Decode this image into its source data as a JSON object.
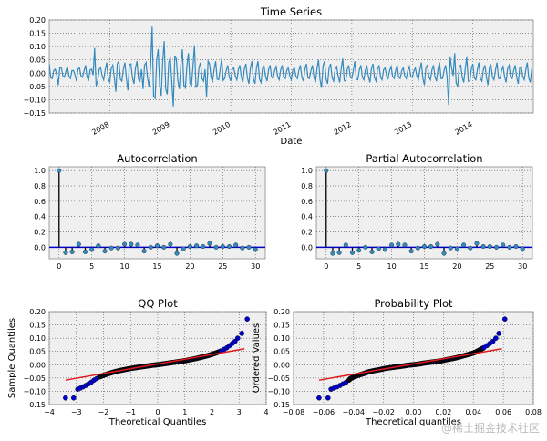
{
  "chart_data": [
    {
      "id": "ts",
      "type": "line",
      "title": "Time Series",
      "xlabel": "Date",
      "ylabel": "",
      "xlim": [
        2007,
        2015
      ],
      "ylim": [
        -0.15,
        0.2
      ],
      "grid": true,
      "color": "#348ABD",
      "xticks": [
        2008,
        2009,
        2010,
        2011,
        2012,
        2013,
        2014
      ],
      "xtick_labels": [
        "2008",
        "2009",
        "2010",
        "2011",
        "2012",
        "2013",
        "2014"
      ],
      "yticks": [
        0.2,
        0.15,
        0.1,
        0.05,
        0.0,
        -0.05,
        -0.1,
        -0.15
      ],
      "ytick_labels": [
        "0.20",
        "0.15",
        "0.10",
        "0.05",
        "0.00",
        "−0.05",
        "−0.10",
        "−0.15"
      ],
      "x_start": 2007.0,
      "x_step": 0.05,
      "values": [
        0.035,
        -0.02,
        0.015,
        -0.045,
        0.02,
        -0.015,
        0.025,
        -0.02,
        0.01,
        -0.03,
        0.02,
        -0.015,
        0.03,
        -0.025,
        0.015,
        0.095,
        -0.03,
        0.02,
        -0.025,
        0.04,
        -0.035,
        0.03,
        -0.07,
        0.045,
        -0.03,
        0.04,
        -0.065,
        0.035,
        -0.04,
        0.045,
        -0.03,
        -0.06,
        0.04,
        -0.05,
        0.175,
        -0.095,
        0.09,
        -0.085,
        0.12,
        -0.08,
        0.06,
        -0.125,
        0.055,
        -0.06,
        0.09,
        -0.055,
        0.075,
        -0.05,
        0.105,
        -0.045,
        0.04,
        -0.03,
        -0.09,
        0.035,
        -0.03,
        0.045,
        -0.025,
        0.055,
        -0.02,
        0.03,
        -0.03,
        0.02,
        -0.025,
        0.03,
        -0.035,
        0.035,
        -0.04,
        0.045,
        -0.04,
        0.045,
        -0.035,
        0.025,
        -0.03,
        0.03,
        -0.02,
        0.025,
        -0.025,
        0.03,
        -0.02,
        0.02,
        -0.025,
        0.02,
        -0.02,
        0.03,
        -0.03,
        0.035,
        -0.02,
        0.03,
        -0.035,
        0.05,
        -0.055,
        0.045,
        -0.04,
        0.035,
        -0.03,
        0.025,
        -0.035,
        0.055,
        -0.03,
        0.03,
        -0.02,
        0.045,
        -0.025,
        0.03,
        -0.025,
        0.025,
        -0.035,
        0.035,
        -0.03,
        0.03,
        -0.025,
        0.02,
        -0.02,
        0.025,
        -0.02,
        0.03,
        -0.02,
        0.02,
        -0.02,
        0.025,
        -0.015,
        0.02,
        -0.025,
        0.04,
        -0.045,
        0.03,
        -0.025,
        0.03,
        -0.03,
        0.04,
        -0.02,
        0.03,
        -0.12,
        0.02,
        0.075,
        -0.05,
        0.03,
        -0.035,
        0.06,
        -0.03,
        0.035,
        -0.025,
        0.04,
        -0.03,
        0.03,
        -0.045,
        0.03,
        -0.025,
        0.04,
        -0.02,
        0.025,
        -0.035,
        0.03,
        -0.02,
        0.03,
        -0.04,
        0.025,
        -0.025,
        0.04,
        -0.035
      ]
    },
    {
      "id": "acf",
      "type": "stem",
      "title": "Autocorrelation",
      "xlim": [
        -1.5,
        31.5
      ],
      "ylim": [
        -0.15,
        1.05
      ],
      "grid": true,
      "marker_color": "#348ABD",
      "zero_line_color": "#0000CC",
      "xticks": [
        0,
        5,
        10,
        15,
        20,
        25,
        30
      ],
      "xtick_labels": [
        "0",
        "5",
        "10",
        "15",
        "20",
        "25",
        "30"
      ],
      "yticks": [
        1.0,
        0.8,
        0.6,
        0.4,
        0.2,
        0.0
      ],
      "ytick_labels": [
        "1.0",
        "0.8",
        "0.6",
        "0.4",
        "0.2",
        "0.0"
      ],
      "values": [
        1.0,
        -0.07,
        -0.06,
        0.04,
        -0.06,
        -0.03,
        0.02,
        -0.05,
        -0.01,
        -0.01,
        0.04,
        0.04,
        0.03,
        -0.05,
        0.0,
        0.02,
        0.0,
        0.04,
        -0.08,
        -0.02,
        0.01,
        0.02,
        0.01,
        0.05,
        0.0,
        0.01,
        0.01,
        0.03,
        -0.01,
        0.0,
        -0.03
      ]
    },
    {
      "id": "pacf",
      "type": "stem",
      "title": "Partial Autocorrelation",
      "xlim": [
        -1.5,
        31.5
      ],
      "ylim": [
        -0.15,
        1.05
      ],
      "grid": true,
      "marker_color": "#348ABD",
      "zero_line_color": "#0000CC",
      "xticks": [
        0,
        5,
        10,
        15,
        20,
        25,
        30
      ],
      "xtick_labels": [
        "0",
        "5",
        "10",
        "15",
        "20",
        "25",
        "30"
      ],
      "yticks": [
        1.0,
        0.8,
        0.6,
        0.4,
        0.2,
        0.0
      ],
      "ytick_labels": [
        "1.0",
        "0.8",
        "0.6",
        "0.4",
        "0.2",
        "0.0"
      ],
      "values": [
        1.0,
        -0.08,
        -0.07,
        0.03,
        -0.07,
        -0.04,
        0.0,
        -0.06,
        -0.02,
        -0.03,
        0.03,
        0.04,
        0.03,
        -0.05,
        -0.01,
        0.01,
        0.01,
        0.04,
        -0.08,
        -0.01,
        -0.02,
        0.03,
        -0.01,
        0.05,
        0.01,
        0.01,
        0.0,
        0.03,
        0.0,
        0.01,
        -0.02
      ]
    },
    {
      "id": "qq",
      "type": "scatter",
      "title": "QQ Plot",
      "xlabel": "Theoretical Quantiles",
      "ylabel": "Sample Quantiles",
      "xlim": [
        -4,
        4
      ],
      "ylim": [
        -0.15,
        0.2
      ],
      "grid": true,
      "point_color": "#0000CC",
      "line_color": "#E41A1C",
      "xticks": [
        -4,
        -3,
        -2,
        -1,
        0,
        1,
        2,
        3,
        4
      ],
      "xtick_labels": [
        "−4",
        "−3",
        "−2",
        "−1",
        "0",
        "1",
        "2",
        "3",
        "4"
      ],
      "yticks": [
        0.2,
        0.15,
        0.1,
        0.05,
        0.0,
        -0.05,
        -0.1,
        -0.15
      ],
      "ytick_labels": [
        "0.20",
        "0.15",
        "0.10",
        "0.05",
        "0.00",
        "−0.05",
        "−0.10",
        "−0.15"
      ],
      "x": [
        -3.4,
        -3.1,
        -2.95,
        -2.85,
        -2.75,
        -2.65,
        -2.55,
        -2.45,
        -2.35,
        -2.25,
        -2.15,
        -2.0,
        -1.8,
        -1.6,
        -1.4,
        -1.2,
        -1.0,
        -0.8,
        -0.6,
        -0.4,
        -0.2,
        0,
        0.2,
        0.4,
        0.6,
        0.8,
        1.0,
        1.2,
        1.4,
        1.6,
        1.8,
        2.0,
        2.2,
        2.35,
        2.45,
        2.55,
        2.65,
        2.75,
        2.85,
        2.95,
        3.1,
        3.3
      ],
      "y": [
        -0.125,
        -0.125,
        -0.092,
        -0.088,
        -0.083,
        -0.078,
        -0.072,
        -0.066,
        -0.058,
        -0.052,
        -0.046,
        -0.04,
        -0.033,
        -0.027,
        -0.022,
        -0.018,
        -0.014,
        -0.011,
        -0.008,
        -0.005,
        -0.002,
        0.0,
        0.003,
        0.006,
        0.009,
        0.012,
        0.015,
        0.019,
        0.023,
        0.028,
        0.033,
        0.039,
        0.046,
        0.052,
        0.058,
        0.064,
        0.072,
        0.08,
        0.088,
        0.1,
        0.118,
        0.172
      ],
      "fit_line": {
        "x": [
          -3.4,
          3.2
        ],
        "y": [
          -0.058,
          0.06
        ]
      }
    },
    {
      "id": "pp",
      "type": "scatter",
      "title": "Probability Plot",
      "xlabel": "Theoretical quantiles",
      "ylabel": "Ordered Values",
      "xlim": [
        -0.08,
        0.08
      ],
      "ylim": [
        -0.15,
        0.2
      ],
      "grid": true,
      "point_color": "#0000CC",
      "line_color": "#E41A1C",
      "xticks": [
        -0.08,
        -0.06,
        -0.04,
        -0.02,
        0.0,
        0.02,
        0.04,
        0.06,
        0.08
      ],
      "xtick_labels": [
        "−0.08",
        "−0.06",
        "−0.04",
        "−0.02",
        "0.00",
        "0.02",
        "0.04",
        "0.06",
        "0.08"
      ],
      "yticks": [
        0.2,
        0.15,
        0.1,
        0.05,
        0.0,
        -0.05,
        -0.1,
        -0.15
      ],
      "ytick_labels": [
        "0.20",
        "0.15",
        "0.10",
        "0.05",
        "0.00",
        "−0.05",
        "−0.10",
        "−0.15"
      ],
      "x": [
        -0.063,
        -0.057,
        -0.055,
        -0.053,
        -0.051,
        -0.049,
        -0.047,
        -0.045,
        -0.043,
        -0.042,
        -0.04,
        -0.037,
        -0.033,
        -0.03,
        -0.026,
        -0.022,
        -0.019,
        -0.015,
        -0.011,
        -0.007,
        -0.004,
        0,
        0.004,
        0.007,
        0.011,
        0.015,
        0.019,
        0.022,
        0.026,
        0.03,
        0.033,
        0.037,
        0.041,
        0.043,
        0.045,
        0.047,
        0.049,
        0.051,
        0.053,
        0.055,
        0.057,
        0.061
      ],
      "y": [
        -0.125,
        -0.125,
        -0.092,
        -0.088,
        -0.083,
        -0.078,
        -0.072,
        -0.066,
        -0.058,
        -0.052,
        -0.046,
        -0.04,
        -0.033,
        -0.027,
        -0.022,
        -0.018,
        -0.014,
        -0.011,
        -0.008,
        -0.005,
        -0.002,
        0.0,
        0.003,
        0.006,
        0.009,
        0.012,
        0.015,
        0.019,
        0.023,
        0.028,
        0.033,
        0.039,
        0.046,
        0.052,
        0.058,
        0.064,
        0.072,
        0.08,
        0.088,
        0.1,
        0.118,
        0.172
      ],
      "fit_line": {
        "x": [
          -0.063,
          0.059
        ],
        "y": [
          -0.058,
          0.06
        ]
      }
    }
  ],
  "watermark": "@稀土掘金技术社区"
}
